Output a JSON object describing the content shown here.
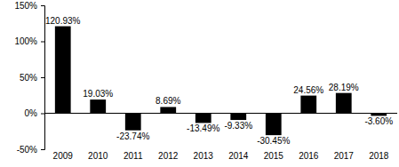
{
  "chart_data": {
    "type": "bar",
    "categories": [
      "2009",
      "2010",
      "2011",
      "2012",
      "2013",
      "2014",
      "2015",
      "2016",
      "2017",
      "2018"
    ],
    "values": [
      120.93,
      19.03,
      -23.74,
      8.69,
      -13.49,
      -9.33,
      -30.45,
      24.56,
      28.19,
      -3.6
    ],
    "value_labels": [
      "120.93%",
      "19.03%",
      "-23.74%",
      "8.69%",
      "-13.49%",
      "-9.33%",
      "-30.45%",
      "24.56%",
      "28.19%",
      "-3.60%"
    ],
    "color": "#000000",
    "ylim": [
      -50,
      150
    ],
    "yticks": [
      {
        "value": -50,
        "label": "-50%"
      },
      {
        "value": 0,
        "label": "0%"
      },
      {
        "value": 50,
        "label": "50%"
      },
      {
        "value": 100,
        "label": "100%"
      },
      {
        "value": 150,
        "label": "150%"
      }
    ],
    "grid": false,
    "data_labels": true
  }
}
